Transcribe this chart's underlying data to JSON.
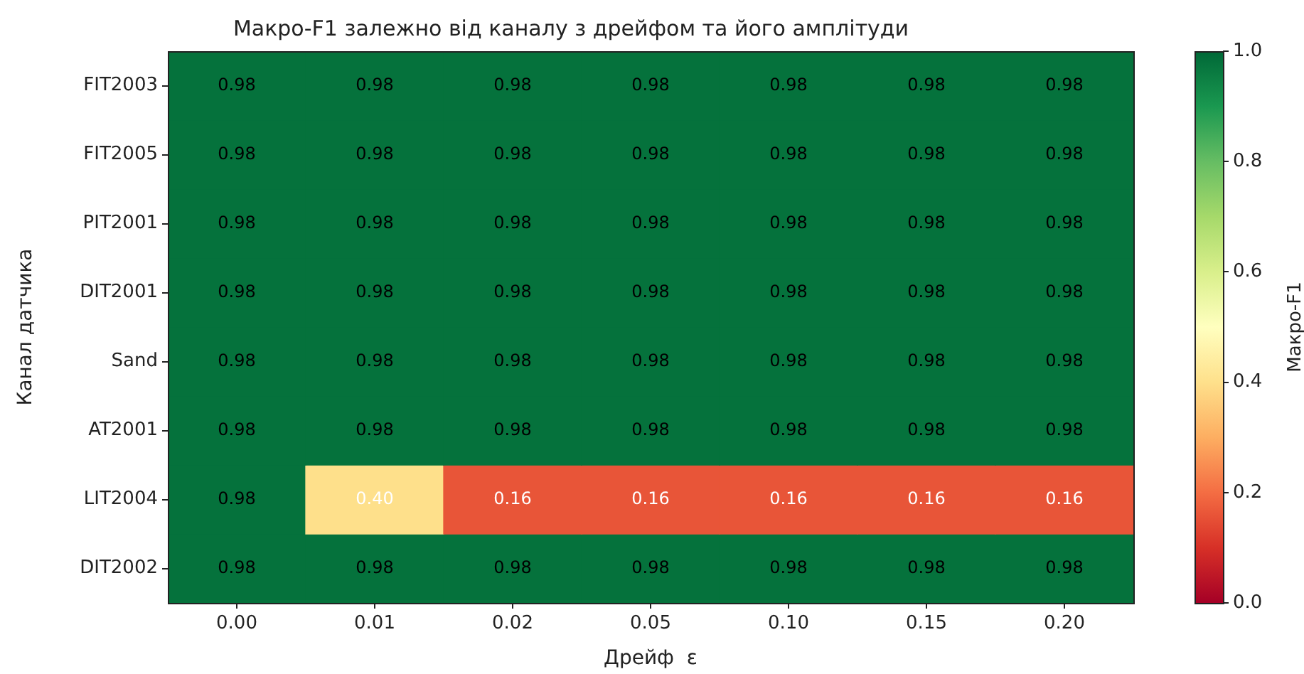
{
  "chart_data": {
    "type": "heatmap",
    "title": "Макро-F1 залежно від каналу з дрейфом та його амплітуди",
    "xlabel": "Дрейф  ε",
    "ylabel": "Канал датчика",
    "clabel": "Макро-F1",
    "categories": [
      "0.00",
      "0.01",
      "0.02",
      "0.05",
      "0.10",
      "0.15",
      "0.20"
    ],
    "y_categories": [
      "FIT2003",
      "FIT2005",
      "PIT2001",
      "DIT2001",
      "Sand",
      "AT2001",
      "LIT2004",
      "DIT2002"
    ],
    "cells": [
      [
        0.98,
        0.98,
        0.98,
        0.98,
        0.98,
        0.98,
        0.98
      ],
      [
        0.98,
        0.98,
        0.98,
        0.98,
        0.98,
        0.98,
        0.98
      ],
      [
        0.98,
        0.98,
        0.98,
        0.98,
        0.98,
        0.98,
        0.98
      ],
      [
        0.98,
        0.98,
        0.98,
        0.98,
        0.98,
        0.98,
        0.98
      ],
      [
        0.98,
        0.98,
        0.98,
        0.98,
        0.98,
        0.98,
        0.98
      ],
      [
        0.98,
        0.98,
        0.98,
        0.98,
        0.98,
        0.98,
        0.98
      ],
      [
        0.98,
        0.4,
        0.16,
        0.16,
        0.16,
        0.16,
        0.16
      ],
      [
        0.98,
        0.98,
        0.98,
        0.98,
        0.98,
        0.98,
        0.98
      ]
    ],
    "cell_labels": [
      [
        "0.98",
        "0.98",
        "0.98",
        "0.98",
        "0.98",
        "0.98",
        "0.98"
      ],
      [
        "0.98",
        "0.98",
        "0.98",
        "0.98",
        "0.98",
        "0.98",
        "0.98"
      ],
      [
        "0.98",
        "0.98",
        "0.98",
        "0.98",
        "0.98",
        "0.98",
        "0.98"
      ],
      [
        "0.98",
        "0.98",
        "0.98",
        "0.98",
        "0.98",
        "0.98",
        "0.98"
      ],
      [
        "0.98",
        "0.98",
        "0.98",
        "0.98",
        "0.98",
        "0.98",
        "0.98"
      ],
      [
        "0.98",
        "0.98",
        "0.98",
        "0.98",
        "0.98",
        "0.98",
        "0.98"
      ],
      [
        "0.98",
        "0.40",
        "0.16",
        "0.16",
        "0.16",
        "0.16",
        "0.16"
      ],
      [
        "0.98",
        "0.98",
        "0.98",
        "0.98",
        "0.98",
        "0.98",
        "0.98"
      ]
    ],
    "clim": [
      0,
      1
    ],
    "cticks": [
      {
        "value": 0,
        "label": "0.0"
      },
      0.2,
      0.4,
      0.6,
      0.8,
      {
        "value": 1,
        "label": "1.0"
      }
    ]
  }
}
